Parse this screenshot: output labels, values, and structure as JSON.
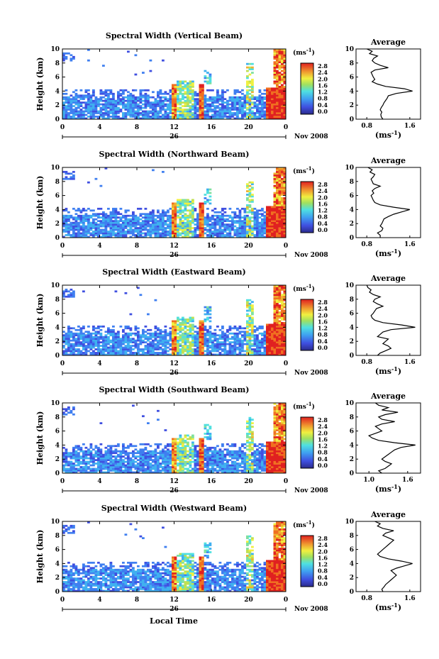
{
  "chart_data": [
    {
      "type": "heatmap",
      "title": "Spectral Width (Vertical Beam)",
      "ylabel": "Height (km)",
      "y_ticks": [
        "0",
        "2",
        "4",
        "6",
        "8",
        "10"
      ],
      "ylim": [
        0,
        10
      ],
      "x_ticks": [
        "0",
        "4",
        "8",
        "12",
        "16",
        "20",
        "0"
      ],
      "xlim": [
        0,
        24
      ],
      "day_label": "26",
      "date_label": "Nov 2008",
      "colorbar": {
        "unit_open": "(ms",
        "unit_exp": "-1",
        "unit_close": ")",
        "ticks": [
          "2.8",
          "2.4",
          "2.0",
          "1.6",
          "1.2",
          "0.8",
          "0.4",
          "0.0"
        ]
      },
      "profile": {
        "title": "Average",
        "x_ticks": [
          "0.8",
          "1.6"
        ],
        "xlim": [
          0.6,
          1.8
        ],
        "xlabel_open": "(ms",
        "xlabel_exp": "-1",
        "xlabel_close": ")",
        "values": [
          1.1,
          1.07,
          1.06,
          1.08,
          1.05,
          1.07,
          1.1,
          1.12,
          1.15,
          1.18,
          1.2,
          1.35,
          1.65,
          1.5,
          1.15,
          1.0,
          0.9,
          0.95,
          0.92,
          0.9,
          0.88,
          0.95,
          1.2,
          1.05,
          0.95,
          0.9,
          0.93,
          1.0,
          0.85,
          0.9,
          0.8
        ]
      }
    },
    {
      "type": "heatmap",
      "title": "Spectral Width (Northward Beam)",
      "ylabel": "Height (km)",
      "y_ticks": [
        "0",
        "2",
        "4",
        "6",
        "8",
        "10"
      ],
      "ylim": [
        0,
        10
      ],
      "x_ticks": [
        "0",
        "4",
        "8",
        "12",
        "16",
        "20",
        "0"
      ],
      "xlim": [
        0,
        24
      ],
      "day_label": "26",
      "date_label": "Nov 2008",
      "colorbar": {
        "unit_open": "(ms",
        "unit_exp": "-1",
        "unit_close": ")",
        "ticks": [
          "2.8",
          "2.4",
          "2.0",
          "1.6",
          "1.2",
          "0.8",
          "0.4",
          "0.0"
        ]
      },
      "profile": {
        "title": "Average",
        "x_ticks": [
          "0.8",
          "1.6"
        ],
        "xlim": [
          0.6,
          1.8
        ],
        "xlabel_open": "(ms",
        "xlabel_exp": "-1",
        "xlabel_close": ")",
        "values": [
          1.05,
          1.05,
          1.0,
          1.08,
          1.1,
          1.05,
          1.08,
          1.1,
          1.12,
          1.2,
          1.3,
          1.45,
          1.6,
          1.3,
          1.05,
          0.95,
          0.92,
          0.9,
          0.88,
          0.93,
          0.9,
          0.95,
          1.05,
          0.92,
          0.9,
          0.88,
          0.92,
          0.95,
          0.86,
          0.9,
          0.82
        ]
      }
    },
    {
      "type": "heatmap",
      "title": "Spectral Width (Eastward Beam)",
      "ylabel": "Height (km)",
      "y_ticks": [
        "0",
        "2",
        "4",
        "6",
        "8",
        "10"
      ],
      "ylim": [
        0,
        10
      ],
      "x_ticks": [
        "0",
        "4",
        "8",
        "12",
        "16",
        "20",
        "0"
      ],
      "xlim": [
        0,
        24
      ],
      "day_label": "26",
      "date_label": "Nov 2008",
      "colorbar": {
        "unit_open": "(ms",
        "unit_exp": "-1",
        "unit_close": ")",
        "ticks": [
          "2.8",
          "2.4",
          "2.0",
          "1.6",
          "1.2",
          "0.8",
          "0.4",
          "0.0"
        ]
      },
      "profile": {
        "title": "Average",
        "x_ticks": [
          "0.8",
          "1.6"
        ],
        "xlim": [
          0.6,
          1.8
        ],
        "xlabel_open": "(ms",
        "xlabel_exp": "-1",
        "xlabel_close": ")",
        "values": [
          1.0,
          1.05,
          1.15,
          1.25,
          1.2,
          1.1,
          1.15,
          1.2,
          1.0,
          1.05,
          1.1,
          1.25,
          1.7,
          1.45,
          1.1,
          0.95,
          0.9,
          0.88,
          0.92,
          0.95,
          0.98,
          1.1,
          1.0,
          0.92,
          0.95,
          1.05,
          0.92,
          0.85,
          0.88,
          0.82,
          0.8
        ]
      }
    },
    {
      "type": "heatmap",
      "title": "Spectral Width (Southward Beam)",
      "ylabel": "Height (km)",
      "y_ticks": [
        "0",
        "2",
        "4",
        "6",
        "8",
        "10"
      ],
      "ylim": [
        0,
        10
      ],
      "x_ticks": [
        "0",
        "4",
        "8",
        "12",
        "16",
        "20",
        "0"
      ],
      "xlim": [
        0,
        24
      ],
      "day_label": "26",
      "date_label": "Nov 2008",
      "colorbar": {
        "unit_open": "(ms",
        "unit_exp": "-1",
        "unit_close": ")",
        "ticks": [
          "2.8",
          "2.4",
          "2.0",
          "1.6",
          "1.2",
          "0.8",
          "0.4",
          "0.0"
        ]
      },
      "profile": {
        "title": "Average",
        "x_ticks": [
          "1.0",
          "1.6"
        ],
        "xlim": [
          0.8,
          1.8
        ],
        "xlabel_open": "(ms",
        "xlabel_exp": "-1",
        "xlabel_close": ")",
        "values": [
          1.2,
          1.15,
          1.25,
          1.3,
          1.35,
          1.25,
          1.2,
          1.25,
          1.3,
          1.35,
          1.4,
          1.5,
          1.72,
          1.4,
          1.15,
          1.05,
          1.0,
          1.1,
          1.2,
          1.15,
          1.1,
          1.2,
          1.4,
          1.2,
          1.15,
          1.25,
          1.45,
          1.2,
          1.3,
          1.15,
          1.1
        ]
      }
    },
    {
      "type": "heatmap",
      "title": "Spectral Width (Westward Beam)",
      "ylabel": "Height (km)",
      "y_ticks": [
        "0",
        "2",
        "4",
        "6",
        "8",
        "10"
      ],
      "ylim": [
        0,
        10
      ],
      "x_ticks": [
        "0",
        "4",
        "8",
        "12",
        "16",
        "20",
        "0"
      ],
      "xlim": [
        0,
        24
      ],
      "day_label": "26",
      "date_label": "Nov 2008",
      "xlabel": "Local Time",
      "colorbar": {
        "unit_open": "(ms",
        "unit_exp": "-1",
        "unit_close": ")",
        "ticks": [
          "2.8",
          "2.4",
          "2.0",
          "1.6",
          "1.2",
          "0.8",
          "0.4",
          "0.0"
        ]
      },
      "profile": {
        "title": "Average",
        "x_ticks": [
          "0.8",
          "1.6"
        ],
        "xlim": [
          0.6,
          1.8
        ],
        "xlabel_open": "(ms",
        "xlabel_exp": "-1",
        "xlabel_close": ")",
        "values": [
          1.1,
          1.08,
          1.12,
          1.15,
          1.2,
          1.25,
          1.3,
          1.35,
          1.3,
          1.25,
          1.35,
          1.5,
          1.65,
          1.45,
          1.2,
          1.05,
          1.0,
          1.05,
          1.1,
          1.15,
          1.2,
          1.25,
          1.3,
          1.2,
          1.1,
          1.15,
          1.3,
          1.1,
          1.0,
          1.05,
          0.95
        ]
      }
    }
  ]
}
